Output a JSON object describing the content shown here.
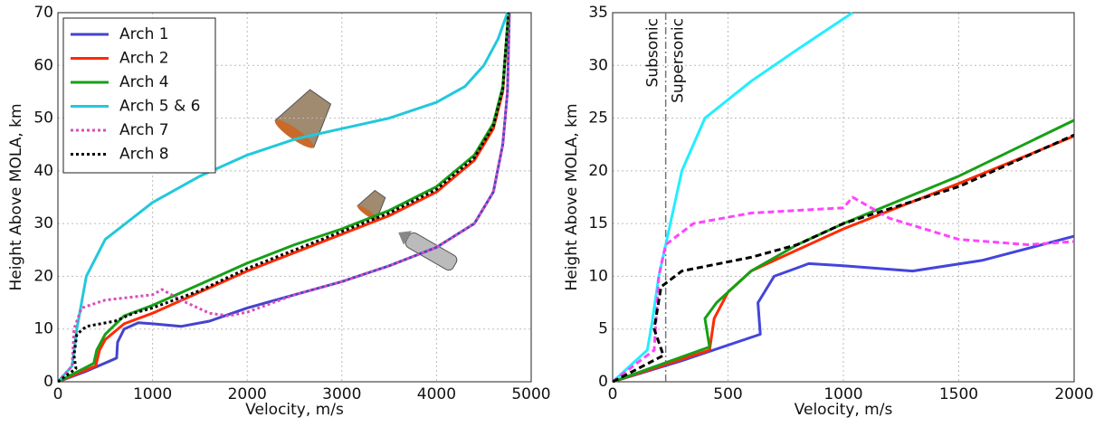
{
  "chart_data": [
    {
      "type": "line",
      "xlabel": "Velocity, m/s",
      "ylabel": "Height Above MOLA, km",
      "xlim": [
        0,
        5000
      ],
      "ylim": [
        0,
        70
      ],
      "xticks": [
        0,
        1000,
        2000,
        3000,
        4000,
        5000
      ],
      "yticks": [
        0,
        10,
        20,
        30,
        40,
        50,
        60,
        70
      ],
      "grid": true,
      "legend": "upper left",
      "series": [
        {
          "name": "Arch 1",
          "color": "#4444cc",
          "dash": "solid",
          "x": [
            0,
            300,
            620,
            630,
            700,
            850,
            1000,
            1300,
            1600,
            2000,
            2500,
            3000,
            3500,
            4000,
            4400,
            4600,
            4700,
            4750,
            4770
          ],
          "values": [
            0,
            2,
            4.5,
            7.5,
            10,
            11.2,
            11,
            10.5,
            11.5,
            14,
            16.5,
            19,
            22,
            25.5,
            30,
            36,
            45,
            55,
            70
          ]
        },
        {
          "name": "Arch 2",
          "color": "#ff2a00",
          "dash": "solid",
          "x": [
            0,
            400,
            440,
            500,
            700,
            1000,
            1500,
            2000,
            2500,
            3000,
            3500,
            4000,
            4400,
            4600,
            4700,
            4760
          ],
          "values": [
            0,
            3,
            6,
            8,
            11,
            13,
            17,
            21,
            24.5,
            28,
            31.5,
            36,
            42,
            48,
            55,
            70
          ]
        },
        {
          "name": "Arch 4",
          "color": "#16a016",
          "dash": "solid",
          "x": [
            0,
            380,
            410,
            500,
            700,
            1000,
            1500,
            2000,
            2500,
            3000,
            3500,
            4000,
            4400,
            4600,
            4700,
            4760
          ],
          "values": [
            0,
            3.5,
            6,
            9,
            12.5,
            14.5,
            18.5,
            22.5,
            26,
            29,
            32.5,
            37,
            43,
            49,
            56,
            70
          ]
        },
        {
          "name": "Arch 5 & 6",
          "color": "#22c8dc",
          "dash": "solid",
          "x": [
            0,
            150,
            200,
            300,
            500,
            1000,
            1500,
            2000,
            2500,
            3000,
            3500,
            4000,
            4300,
            4500,
            4650,
            4750
          ],
          "values": [
            0,
            3,
            10,
            20,
            27,
            34,
            39,
            43,
            46,
            48,
            50,
            53,
            56,
            60,
            65,
            70
          ]
        },
        {
          "name": "Arch 7",
          "color": "#d64fb8",
          "dash": "dotted",
          "x": [
            0,
            150,
            170,
            250,
            500,
            1000,
            1100,
            1300,
            1600,
            1800,
            2000,
            2500,
            3000,
            3500,
            4000,
            4400,
            4600,
            4700,
            4750,
            4770
          ],
          "values": [
            0,
            3,
            10,
            14,
            15.5,
            16.5,
            17.5,
            15.5,
            13,
            12.5,
            13.2,
            16.5,
            19,
            22,
            25.5,
            30,
            36,
            45,
            55,
            70
          ]
        },
        {
          "name": "Arch 8",
          "color": "#000000",
          "dash": "dotted",
          "x": [
            0,
            190,
            170,
            200,
            300,
            600,
            800,
            1000,
            1500,
            2000,
            2500,
            3000,
            3500,
            4000,
            4400,
            4600,
            4700,
            4760
          ],
          "values": [
            0,
            2.5,
            5,
            9,
            10.5,
            11.5,
            13,
            14,
            17.3,
            21.5,
            25,
            28.5,
            32,
            36.5,
            42.5,
            48.5,
            55.5,
            70
          ]
        }
      ]
    },
    {
      "type": "line",
      "xlabel": "Velocity, m/s",
      "ylabel": "Height Above MOLA, km",
      "xlim": [
        0,
        2000
      ],
      "ylim": [
        0,
        35
      ],
      "xticks": [
        0,
        500,
        1000,
        1500,
        2000
      ],
      "yticks": [
        0,
        5,
        10,
        15,
        20,
        25,
        30,
        35
      ],
      "grid": true,
      "vline": 230,
      "annotations": [
        "Subsonic",
        "Supersonic"
      ],
      "series": [
        {
          "color": "#4444dd",
          "dash": "solid",
          "x": [
            0,
            300,
            640,
            630,
            700,
            850,
            1000,
            1300,
            1600,
            2000
          ],
          "values": [
            0,
            2,
            4.5,
            7.5,
            10,
            11.2,
            11,
            10.5,
            11.5,
            13.8
          ]
        },
        {
          "color": "#ff2a00",
          "dash": "solid",
          "x": [
            0,
            420,
            440,
            500,
            600,
            800,
            1000,
            1500,
            2000
          ],
          "values": [
            0,
            3,
            6,
            8.5,
            10.5,
            12.5,
            14.5,
            18.8,
            23.3
          ]
        },
        {
          "color": "#16a016",
          "dash": "solid",
          "x": [
            0,
            420,
            400,
            450,
            600,
            800,
            1000,
            1500,
            2000
          ],
          "values": [
            0,
            3.3,
            6,
            7.5,
            10.5,
            13,
            15,
            19.5,
            24.8
          ]
        },
        {
          "color": "#22eeff",
          "dash": "solid",
          "x": [
            0,
            150,
            170,
            200,
            300,
            400,
            600,
            800,
            1040
          ],
          "values": [
            0,
            3,
            5.5,
            10,
            20,
            25,
            28.5,
            31.5,
            35
          ]
        },
        {
          "color": "#ff44ff",
          "dash": "dashed",
          "x": [
            0,
            180,
            200,
            230,
            350,
            600,
            1000,
            1040,
            1200,
            1500,
            1800,
            2000
          ],
          "values": [
            0,
            3,
            10,
            13,
            15,
            16,
            16.5,
            17.5,
            15.5,
            13.5,
            13,
            13.3
          ]
        },
        {
          "color": "#000000",
          "dash": "dashed",
          "x": [
            0,
            220,
            180,
            210,
            300,
            600,
            800,
            1000,
            1500,
            2000
          ],
          "values": [
            0,
            2.5,
            5,
            9,
            10.5,
            11.8,
            13,
            15,
            18.5,
            23.4
          ]
        }
      ]
    }
  ]
}
